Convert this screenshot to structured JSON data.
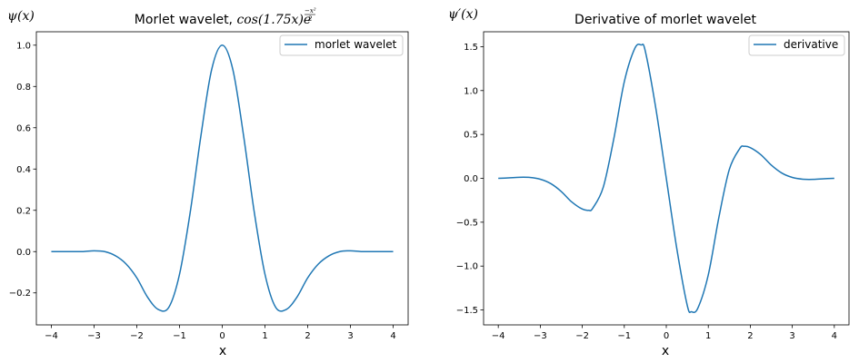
{
  "chart_data": [
    {
      "type": "line",
      "title_prefix": "Morlet wavelet, ",
      "title_math_main": "cos(1.75x)e",
      "title_math_exp_num": "−x²",
      "title_math_exp_den": "2",
      "ylabel": "ψ(x)",
      "xlabel": "x",
      "xlim": [
        -4.35,
        4.35
      ],
      "ylim": [
        -0.355,
        1.065
      ],
      "xticks": [
        -4,
        -3,
        -2,
        -1,
        0,
        1,
        2,
        3,
        4
      ],
      "xtick_labels": [
        "−4",
        "−3",
        "−2",
        "−1",
        "0",
        "1",
        "2",
        "3",
        "4"
      ],
      "yticks": [
        -0.2,
        0.0,
        0.2,
        0.4,
        0.6,
        0.8,
        1.0
      ],
      "ytick_labels": [
        "−0.2",
        "0.0",
        "0.2",
        "0.4",
        "0.6",
        "0.8",
        "1.0"
      ],
      "legend_position": "top-right",
      "line_color": "#1f77b4",
      "series": [
        {
          "name": "morlet wavelet",
          "x": [
            -4.0,
            -3.75,
            -3.5,
            -3.25,
            -3.0,
            -2.75,
            -2.5,
            -2.25,
            -2.0,
            -1.75,
            -1.5,
            -1.25,
            -1.0,
            -0.75,
            -0.5,
            -0.25,
            0.0,
            0.25,
            0.5,
            0.75,
            1.0,
            1.25,
            1.5,
            1.75,
            2.0,
            2.25,
            2.5,
            2.75,
            3.0,
            3.25,
            3.5,
            3.75,
            4.0
          ],
          "y": [
            0.0,
            0.0,
            0.0,
            0.0,
            0.004,
            0.0,
            -0.02,
            -0.06,
            -0.127,
            -0.22,
            -0.28,
            -0.27,
            -0.11,
            0.19,
            0.56,
            0.88,
            1.0,
            0.88,
            0.56,
            0.19,
            -0.11,
            -0.27,
            -0.28,
            -0.22,
            -0.127,
            -0.06,
            -0.02,
            0.0,
            0.004,
            0.0,
            0.0,
            0.0,
            0.0
          ]
        }
      ]
    },
    {
      "type": "line",
      "title": "Derivative of morlet wavelet",
      "ylabel": "ψ′(x)",
      "xlabel": "x",
      "xlim": [
        -4.35,
        4.35
      ],
      "ylim": [
        -1.67,
        1.67
      ],
      "xticks": [
        -4,
        -3,
        -2,
        -1,
        0,
        1,
        2,
        3,
        4
      ],
      "xtick_labels": [
        "−4",
        "−3",
        "−2",
        "−1",
        "0",
        "1",
        "2",
        "3",
        "4"
      ],
      "yticks": [
        -1.5,
        -1.0,
        -0.5,
        0.0,
        0.5,
        1.0,
        1.5
      ],
      "ytick_labels": [
        "−1.5",
        "−1.0",
        "−0.5",
        "0.0",
        "0.5",
        "1.0",
        "1.5"
      ],
      "legend_position": "top-right",
      "line_color": "#1f77b4",
      "series": [
        {
          "name": "derivative",
          "x": [
            -4.0,
            -3.75,
            -3.5,
            -3.25,
            -3.0,
            -2.75,
            -2.5,
            -2.25,
            -2.0,
            -1.85,
            -1.75,
            -1.5,
            -1.25,
            -1.0,
            -0.75,
            -0.6,
            -0.5,
            -0.25,
            0.0,
            0.25,
            0.5,
            0.6,
            0.75,
            1.0,
            1.25,
            1.5,
            1.75,
            1.85,
            2.0,
            2.25,
            2.5,
            2.75,
            3.0,
            3.25,
            3.5,
            3.75,
            4.0
          ],
          "y": [
            0.0,
            0.005,
            0.012,
            0.01,
            -0.01,
            -0.06,
            -0.15,
            -0.27,
            -0.35,
            -0.365,
            -0.34,
            -0.1,
            0.45,
            1.1,
            1.48,
            1.52,
            1.45,
            0.8,
            0.0,
            -0.8,
            -1.45,
            -1.52,
            -1.48,
            -1.1,
            -0.45,
            0.1,
            0.34,
            0.365,
            0.35,
            0.27,
            0.15,
            0.06,
            0.01,
            -0.01,
            -0.012,
            -0.005,
            0.0
          ]
        }
      ]
    }
  ]
}
